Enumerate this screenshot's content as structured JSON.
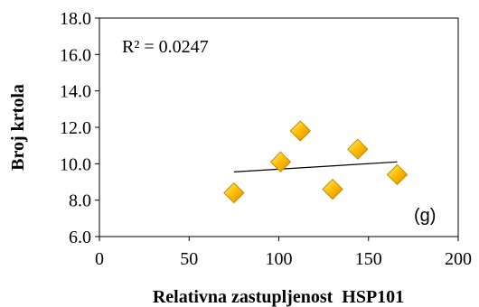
{
  "chart_data": {
    "type": "scatter",
    "xlabel": "Relativna zastupljenost  HSP101",
    "ylabel": "Broj krtola",
    "xlim": [
      0,
      200
    ],
    "ylim": [
      6.0,
      18.0
    ],
    "x_ticks": [
      "0",
      "50",
      "100",
      "150",
      "200"
    ],
    "y_ticks": [
      "6.0",
      "8.0",
      "10.0",
      "12.0",
      "14.0",
      "16.0",
      "18.0"
    ],
    "points": [
      {
        "x": 75,
        "y": 8.4
      },
      {
        "x": 101,
        "y": 10.1
      },
      {
        "x": 112,
        "y": 11.8
      },
      {
        "x": 130,
        "y": 8.6
      },
      {
        "x": 144,
        "y": 10.8
      },
      {
        "x": 166,
        "y": 9.4
      }
    ],
    "trendline": {
      "x": [
        75,
        166
      ],
      "y": [
        9.55,
        10.1
      ]
    },
    "annotation": "R² = 0.0247",
    "panel_label": "(g)",
    "marker_color": "#FFC000",
    "marker_edge_color": "#C08A00",
    "grid": false,
    "legend": "none"
  }
}
